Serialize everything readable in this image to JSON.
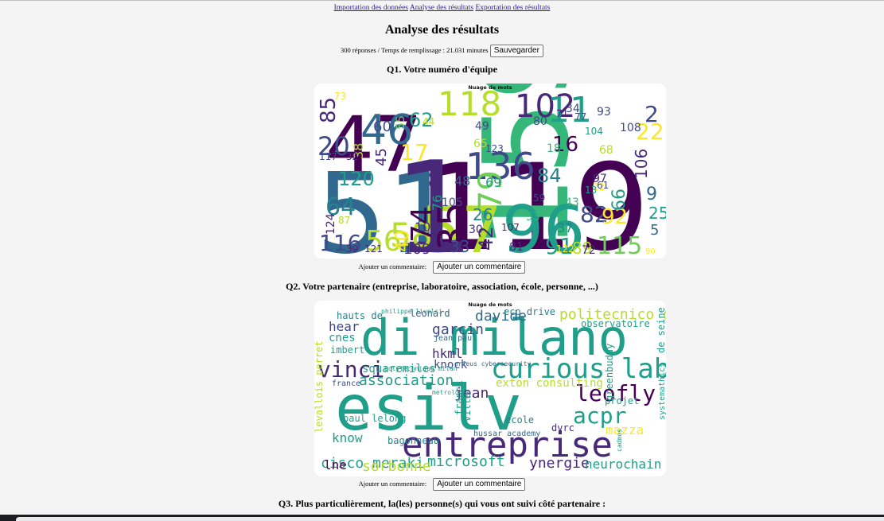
{
  "nav": {
    "links": [
      "Importation des données",
      "Analyse des résultats",
      "Exportation des résultats"
    ]
  },
  "page": {
    "title": "Analyse des résultats",
    "summary": "300 réponses / Temps de remplissage : 21.031 minutes",
    "save_label": "Sauvegarder"
  },
  "questions": [
    {
      "title": "Q1. Votre numéro d'équipe",
      "cloud_title": "Nuage de mots",
      "comment_label": "Ajouter un commentaire:",
      "comment_button": "Ajouter un commentaire"
    },
    {
      "title": "Q2. Votre partenaire (entreprise, laboratoire, association, école, personne, ...)",
      "cloud_title": "Nuage de mots",
      "comment_label": "Ajouter un commentaire:",
      "comment_button": "Ajouter un commentaire"
    },
    {
      "title": "Q3. Plus particulièrement, la(les) personne(s) qui vous ont suivi côté partenaire :"
    }
  ],
  "palette": {
    "dark_purple": "#440154",
    "purple": "#482878",
    "indigo": "#3e4a89",
    "blue": "#31688e",
    "teal_blue": "#26828e",
    "teal": "#1f9e89",
    "green": "#35b779",
    "light_green": "#6ece58",
    "yellow_green": "#b5de2b",
    "yellow": "#fde725"
  },
  "cloud1_words": [
    {
      "t": "51",
      "c": "blue"
    },
    {
      "t": "47",
      "c": "dark_purple"
    },
    {
      "t": "119",
      "c": "dark_purple"
    },
    {
      "t": "159",
      "c": "green"
    },
    {
      "t": "96",
      "c": "teal"
    },
    {
      "t": "57",
      "c": "yellow_green"
    },
    {
      "t": "1",
      "c": "purple"
    },
    {
      "t": "46",
      "c": "blue"
    },
    {
      "t": "102",
      "c": "purple"
    },
    {
      "t": "118",
      "c": "yellow_green"
    },
    {
      "t": "11",
      "c": "teal"
    },
    {
      "t": "136",
      "c": "indigo"
    },
    {
      "t": "35",
      "c": "dark_purple"
    },
    {
      "t": "79",
      "c": "light_green"
    },
    {
      "t": "58",
      "c": "yellow_green"
    },
    {
      "t": "56",
      "c": "yellow_green"
    },
    {
      "t": "115",
      "c": "light_green"
    },
    {
      "t": "116",
      "c": "indigo"
    },
    {
      "t": "20",
      "c": "indigo"
    },
    {
      "t": "64",
      "c": "teal_blue"
    },
    {
      "t": "120",
      "c": "teal"
    },
    {
      "t": "82",
      "c": "indigo"
    },
    {
      "t": "92",
      "c": "yellow"
    },
    {
      "t": "22",
      "c": "yellow"
    },
    {
      "t": "2",
      "c": "indigo"
    },
    {
      "t": "84",
      "c": "teal_blue"
    },
    {
      "t": "16",
      "c": "dark_purple"
    },
    {
      "t": "17",
      "c": "yellow"
    },
    {
      "t": "85",
      "c": "purple"
    },
    {
      "t": "62",
      "c": "teal"
    },
    {
      "t": "109",
      "c": "purple"
    },
    {
      "t": "33",
      "c": "indigo"
    },
    {
      "t": "74",
      "c": "dark_purple"
    },
    {
      "t": "89",
      "c": "yellow_green"
    },
    {
      "t": "91",
      "c": "teal"
    },
    {
      "t": "42",
      "c": "purple"
    },
    {
      "t": "40",
      "c": "yellow"
    },
    {
      "t": "101",
      "c": "purple"
    },
    {
      "t": "26",
      "c": "teal_blue"
    },
    {
      "t": "29",
      "c": "purple"
    },
    {
      "t": "76",
      "c": "teal"
    },
    {
      "t": "106",
      "c": "purple"
    },
    {
      "t": "9",
      "c": "blue"
    },
    {
      "t": "25",
      "c": "teal"
    },
    {
      "t": "5",
      "c": "blue"
    },
    {
      "t": "66",
      "c": "teal"
    },
    {
      "t": "48",
      "c": "blue"
    },
    {
      "t": "69",
      "c": "teal"
    },
    {
      "t": "37",
      "c": "teal_blue"
    },
    {
      "t": "43",
      "c": "green"
    },
    {
      "t": "72",
      "c": "purple"
    },
    {
      "t": "90",
      "c": "yellow"
    },
    {
      "t": "60",
      "c": "indigo"
    },
    {
      "t": "38",
      "c": "yellow_green"
    },
    {
      "t": "45",
      "c": "purple"
    },
    {
      "t": "55",
      "c": "light_green"
    },
    {
      "t": "93",
      "c": "indigo"
    },
    {
      "t": "108",
      "c": "indigo"
    },
    {
      "t": "80",
      "c": "indigo"
    },
    {
      "t": "34",
      "c": "indigo"
    },
    {
      "t": "97",
      "c": "purple"
    },
    {
      "t": "104",
      "c": "teal"
    },
    {
      "t": "68",
      "c": "yellow_green"
    },
    {
      "t": "49",
      "c": "indigo"
    },
    {
      "t": "123",
      "c": "indigo"
    },
    {
      "t": "65",
      "c": "yellow_green"
    },
    {
      "t": "32",
      "c": "purple"
    },
    {
      "t": "117",
      "c": "indigo"
    },
    {
      "t": "73",
      "c": "yellow"
    },
    {
      "t": "87",
      "c": "yellow_green"
    },
    {
      "t": "124",
      "c": "purple"
    },
    {
      "t": "39",
      "c": "purple"
    },
    {
      "t": "121",
      "c": "purple"
    },
    {
      "t": "30",
      "c": "purple"
    },
    {
      "t": "107",
      "c": "purple"
    },
    {
      "t": "12",
      "c": "yellow"
    },
    {
      "t": "59",
      "c": "indigo"
    },
    {
      "t": "18",
      "c": "green"
    },
    {
      "t": "44",
      "c": "yellow_green"
    },
    {
      "t": "77",
      "c": "indigo"
    },
    {
      "t": "81",
      "c": "purple"
    },
    {
      "t": "122",
      "c": "yellow"
    },
    {
      "t": "105",
      "c": "indigo"
    },
    {
      "t": "71",
      "c": "purple"
    },
    {
      "t": "13",
      "c": "teal"
    },
    {
      "t": "61",
      "c": "indigo"
    },
    {
      "t": "53",
      "c": "green"
    }
  ],
  "cloud2_words": [
    {
      "t": "di milano",
      "c": "teal"
    },
    {
      "t": "esilv",
      "c": "teal"
    },
    {
      "t": "entreprise",
      "c": "purple"
    },
    {
      "t": "curious lab",
      "c": "teal"
    },
    {
      "t": "vinci",
      "c": "purple"
    },
    {
      "t": "leofly",
      "c": "dark_purple"
    },
    {
      "t": "acpr",
      "c": "teal"
    },
    {
      "t": "politecnico di",
      "c": "yellow_green"
    },
    {
      "t": "davide",
      "c": "blue"
    },
    {
      "t": "garcin",
      "c": "indigo"
    },
    {
      "t": "hkml",
      "c": "purple"
    },
    {
      "t": "knock",
      "c": "indigo"
    },
    {
      "t": "association",
      "c": "teal"
    },
    {
      "t": "cisco meraki",
      "c": "teal"
    },
    {
      "t": "microsoft",
      "c": "teal"
    },
    {
      "t": "sorbonne",
      "c": "yellow_green"
    },
    {
      "t": "ynergie",
      "c": "purple"
    },
    {
      "t": "neurochain",
      "c": "teal"
    },
    {
      "t": "mazza",
      "c": "yellow"
    },
    {
      "t": "know",
      "c": "teal"
    },
    {
      "t": "lne",
      "c": "dark_purple"
    },
    {
      "t": "jean",
      "c": "purple"
    },
    {
      "t": "hear",
      "c": "indigo"
    },
    {
      "t": "cnes",
      "c": "teal"
    },
    {
      "t": "hauts de",
      "c": "teal_blue"
    },
    {
      "t": "eco drive",
      "c": "teal_blue"
    },
    {
      "t": "observatoire",
      "c": "teal"
    },
    {
      "t": "exton consulting",
      "c": "yellow_green"
    },
    {
      "t": "squaremiles",
      "c": "teal"
    },
    {
      "t": "bagonneau",
      "c": "teal_blue"
    },
    {
      "t": "paul lelong",
      "c": "teal"
    },
    {
      "t": "greenbuddy",
      "c": "teal"
    },
    {
      "t": "de seine",
      "c": "teal"
    },
    {
      "t": "imbert",
      "c": "teal"
    },
    {
      "t": "france",
      "c": "indigo"
    },
    {
      "t": "leonard",
      "c": "blue"
    },
    {
      "t": "jean paul",
      "c": "blue"
    },
    {
      "t": "ecole",
      "c": "teal_blue"
    },
    {
      "t": "dvrc",
      "c": "purple"
    },
    {
      "t": "levallois perret",
      "c": "yellow_green"
    },
    {
      "t": "franck",
      "c": "teal"
    },
    {
      "t": "ville",
      "c": "teal"
    },
    {
      "t": "projet",
      "c": "teal"
    },
    {
      "t": "systemathics",
      "c": "teal"
    },
    {
      "t": "hussar academy",
      "c": "blue"
    },
    {
      "t": "philippe livolsi",
      "c": "teal"
    },
    {
      "t": "polytechnique milan",
      "c": "teal"
    },
    {
      "t": "orfeus cybersecurity",
      "c": "blue"
    },
    {
      "t": "metrologie",
      "c": "teal"
    },
    {
      "t": "cadmos",
      "c": "teal"
    }
  ]
}
